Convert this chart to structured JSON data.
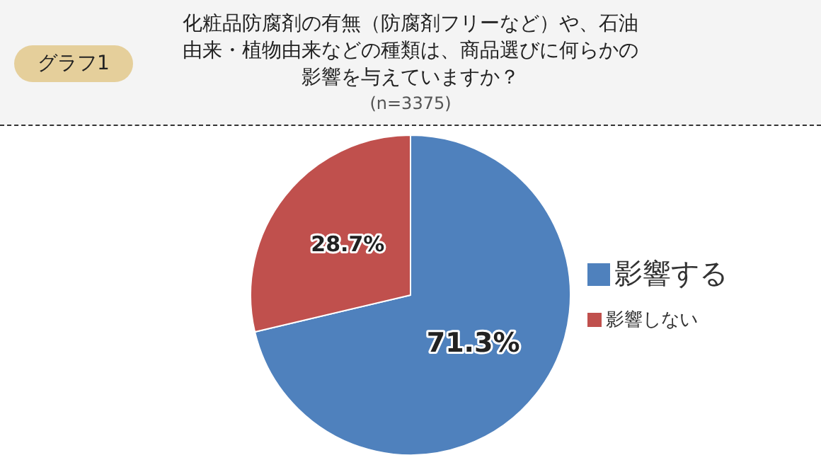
{
  "chart_data": {
    "type": "pie",
    "title": "化粧品防腐剤の有無（防腐剤フリーなど）や、石油由来・植物由来などの種類は、商品選びに何らかの影響を与えていますか？",
    "subtitle": "(n=3375)",
    "annotations": [
      "グラフ1"
    ],
    "categories": [
      "影響する",
      "影響しない"
    ],
    "values": [
      71.3,
      28.7
    ],
    "colors": [
      "#4f81bd",
      "#c0504d"
    ],
    "value_labels": [
      "71.3%",
      "28.7%"
    ],
    "legend": "right"
  }
}
